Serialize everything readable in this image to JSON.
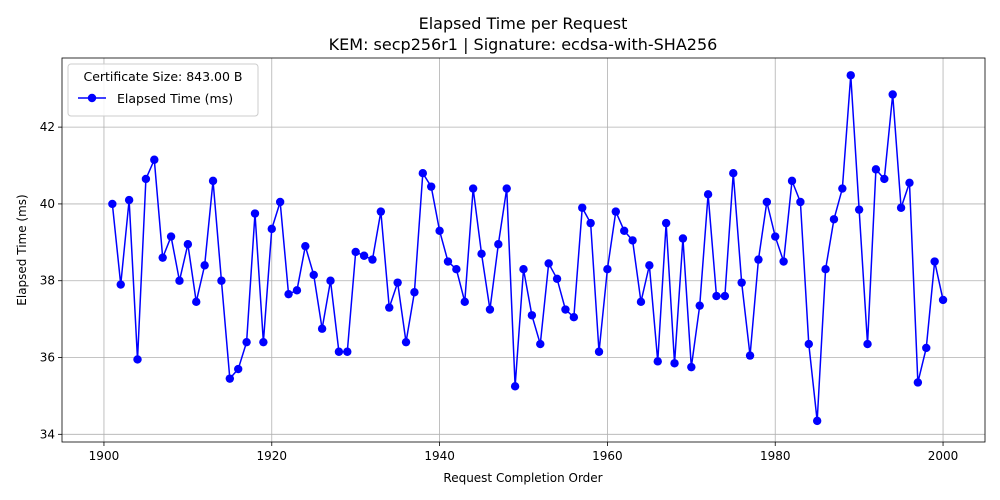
{
  "chart_data": {
    "type": "line",
    "title": "Elapsed Time per Request",
    "subtitle": "KEM: secp256r1 | Signature: ecdsa-with-SHA256",
    "xlabel": "Request Completion Order",
    "ylabel": "Elapsed Time (ms)",
    "xlim": [
      1895,
      2005
    ],
    "ylim": [
      33.8,
      43.8
    ],
    "xticks": [
      1900,
      1920,
      1940,
      1960,
      1980,
      2000
    ],
    "yticks": [
      34,
      36,
      38,
      40,
      42
    ],
    "grid": true,
    "legend": {
      "placement": "top-left",
      "title": "Certificate Size: 843.00 B",
      "entries": [
        "Elapsed Time (ms)"
      ]
    },
    "colors": {
      "series": "#0000ff",
      "grid": "#b0b0b0"
    },
    "x_start": 1901,
    "series": [
      {
        "name": "Elapsed Time (ms)",
        "values": [
          40.0,
          37.9,
          40.1,
          35.95,
          40.65,
          41.15,
          38.6,
          39.15,
          38.0,
          38.95,
          37.45,
          38.4,
          40.6,
          38.0,
          35.45,
          35.7,
          36.4,
          39.75,
          36.4,
          39.35,
          40.05,
          37.65,
          37.75,
          38.9,
          38.15,
          36.75,
          38.0,
          36.15,
          36.15,
          38.75,
          38.65,
          38.55,
          39.8,
          37.3,
          37.95,
          36.4,
          37.7,
          40.8,
          40.45,
          39.3,
          38.5,
          38.3,
          37.45,
          40.4,
          38.7,
          37.25,
          38.95,
          40.4,
          35.25,
          38.3,
          37.1,
          36.35,
          38.45,
          38.05,
          37.25,
          37.05,
          39.9,
          39.5,
          36.15,
          38.3,
          39.8,
          39.3,
          39.05,
          37.45,
          38.4,
          35.9,
          39.5,
          35.85,
          39.1,
          35.75,
          37.35,
          40.25,
          37.6,
          37.6,
          40.8,
          37.95,
          36.05,
          38.55,
          40.05,
          39.15,
          38.5,
          40.6,
          40.05,
          36.35,
          34.35,
          38.3,
          39.6,
          40.4,
          43.35,
          39.85,
          36.35,
          40.9,
          40.65,
          42.85,
          39.9,
          40.55,
          35.35,
          36.25,
          38.5,
          37.5
        ]
      }
    ]
  }
}
